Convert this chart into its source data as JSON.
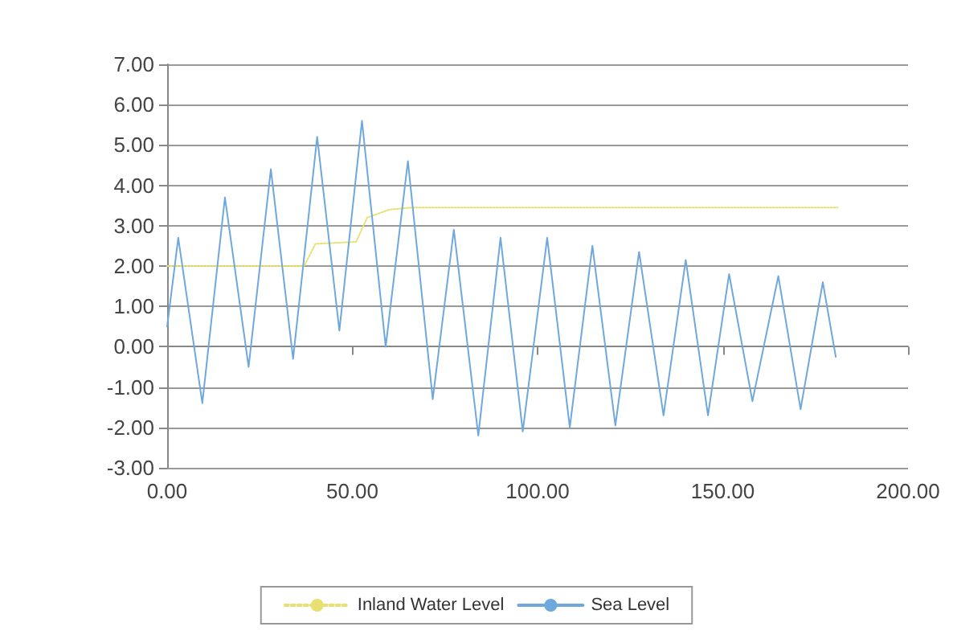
{
  "chart_data": {
    "type": "line",
    "xlim": [
      0,
      200
    ],
    "xticks": [
      {
        "value": 0,
        "label": "0.00"
      },
      {
        "value": 50,
        "label": "50.00"
      },
      {
        "value": 100,
        "label": "100.00"
      },
      {
        "value": 150,
        "label": "150.00"
      },
      {
        "value": 200,
        "label": "200.00"
      }
    ],
    "ylim": [
      -3,
      7
    ],
    "yticks": [
      {
        "value": -3,
        "label": "-3.00"
      },
      {
        "value": -2,
        "label": "-2.00"
      },
      {
        "value": -1,
        "label": "-1.00"
      },
      {
        "value": 0,
        "label": "0.00"
      },
      {
        "value": 1,
        "label": "1.00"
      },
      {
        "value": 2,
        "label": "2.00"
      },
      {
        "value": 3,
        "label": "3.00"
      },
      {
        "value": 4,
        "label": "4.00"
      },
      {
        "value": 5,
        "label": "5.00"
      },
      {
        "value": 6,
        "label": "6.00"
      },
      {
        "value": 7,
        "label": "7.00"
      }
    ],
    "grid": "y",
    "legend": "bottom",
    "marker": "none",
    "series": [
      {
        "name": "Inland Water Level",
        "color": "#e8e070",
        "line_style": "dotted",
        "x": [
          0,
          37,
          40,
          51,
          54,
          60,
          66,
          181
        ],
        "values": [
          2.0,
          2.0,
          2.55,
          2.6,
          3.2,
          3.4,
          3.45,
          3.45
        ]
      },
      {
        "name": "Sea Level",
        "color": "#6fa8dc",
        "line_style": "solid",
        "x": [
          0,
          3,
          9.5,
          15.6,
          22,
          28,
          34,
          40.5,
          46.5,
          52.6,
          59,
          65,
          71.7,
          77.4,
          84,
          90,
          96,
          102.6,
          108.7,
          114.8,
          121,
          127.4,
          134,
          140,
          146,
          151.7,
          158,
          165,
          171,
          177,
          180.5
        ],
        "values": [
          0.5,
          2.7,
          -1.4,
          3.7,
          -0.5,
          4.4,
          -0.3,
          5.2,
          0.4,
          5.6,
          0.0,
          4.6,
          -1.3,
          2.9,
          -2.2,
          2.7,
          -2.1,
          2.7,
          -2.0,
          2.5,
          -1.95,
          2.35,
          -1.7,
          2.15,
          -1.7,
          1.8,
          -1.35,
          1.75,
          -1.55,
          1.6,
          -0.25
        ]
      }
    ]
  }
}
